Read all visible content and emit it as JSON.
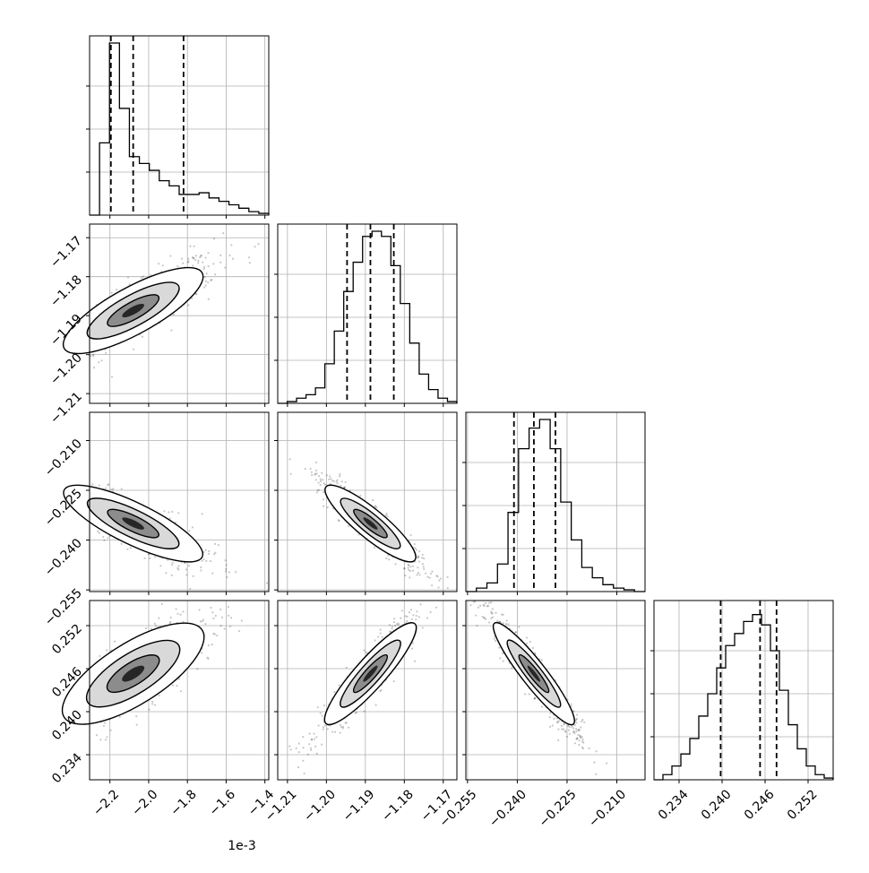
{
  "figure": {
    "x_offset_label": "1e-3"
  },
  "chart_data": {
    "type": "corner",
    "grid": true,
    "quantile_lines": "dashed",
    "parameters": [
      {
        "ticks": [
          -2.2,
          -2.0,
          -1.8,
          -1.6,
          -1.4
        ],
        "tick_labels": [
          "−2.2",
          "−2.0",
          "−1.8",
          "−1.6",
          "−1.4"
        ],
        "range": [
          -2.305,
          -1.38
        ],
        "quantiles": [
          -2.195,
          -2.08,
          -1.82
        ],
        "histogram": [
          0.0,
          0.42,
          1.0,
          0.62,
          0.34,
          0.3,
          0.26,
          0.2,
          0.17,
          0.12,
          0.12,
          0.13,
          0.1,
          0.08,
          0.06,
          0.04,
          0.02,
          0.01
        ]
      },
      {
        "ticks": [
          -1.21,
          -1.2,
          -1.19,
          -1.18,
          -1.17
        ],
        "tick_labels": [
          "−1.21",
          "−1.20",
          "−1.19",
          "−1.18",
          "−1.17"
        ],
        "range": [
          -1.2125,
          -1.1665
        ],
        "quantiles": [
          -1.1947,
          -1.1887,
          -1.1827
        ],
        "histogram": [
          0.0,
          0.01,
          0.03,
          0.05,
          0.09,
          0.23,
          0.42,
          0.65,
          0.82,
          0.97,
          1.0,
          0.97,
          0.8,
          0.58,
          0.35,
          0.17,
          0.08,
          0.03,
          0.01
        ]
      },
      {
        "ticks": [
          -0.255,
          -0.24,
          -0.225,
          -0.21
        ],
        "tick_labels": [
          "−0.255",
          "−0.240",
          "−0.225",
          "−0.210"
        ],
        "range": [
          -0.2555,
          -0.2015
        ],
        "quantiles": [
          -0.241,
          -0.235,
          -0.2285
        ],
        "histogram": [
          0.0,
          0.02,
          0.05,
          0.16,
          0.46,
          0.83,
          0.95,
          1.0,
          0.83,
          0.52,
          0.3,
          0.14,
          0.08,
          0.04,
          0.02,
          0.01,
          0.0
        ]
      },
      {
        "ticks": [
          0.234,
          0.24,
          0.246,
          0.252
        ],
        "tick_labels": [
          "0.234",
          "0.240",
          "0.246",
          "0.252"
        ],
        "range": [
          0.2305,
          0.2555
        ],
        "quantiles": [
          0.2398,
          0.2453,
          0.2476
        ],
        "histogram": [
          0.0,
          0.03,
          0.08,
          0.15,
          0.24,
          0.37,
          0.5,
          0.65,
          0.78,
          0.85,
          0.92,
          0.96,
          0.9,
          0.75,
          0.52,
          0.32,
          0.18,
          0.08,
          0.03,
          0.01
        ]
      }
    ],
    "correlations": {
      "1,0": 0.85,
      "2,0": -0.85,
      "2,1": -0.93,
      "3,0": 0.82,
      "3,1": 0.94,
      "3,2": -0.95
    }
  }
}
